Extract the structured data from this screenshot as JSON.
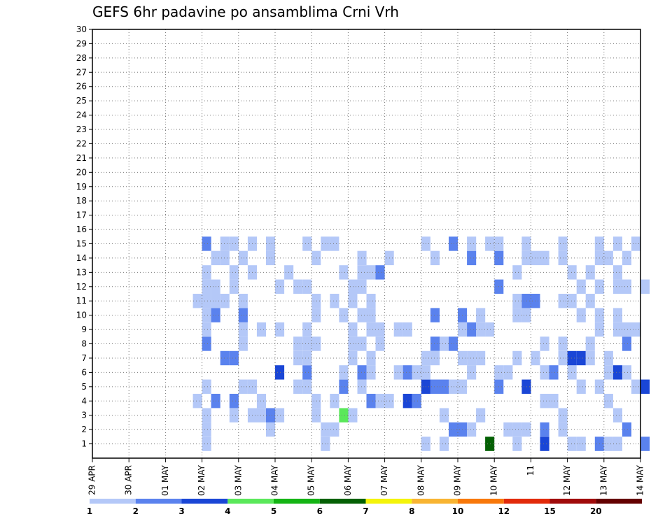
{
  "chart_data": {
    "type": "heatmap",
    "title": "GEFS 6hr padavine po ansamblima Crni Vrh",
    "x_tick_labels": [
      "29 APR",
      "30 APR",
      "01 MAY",
      "02 MAY",
      "03 MAY",
      "04 MAY",
      "05 MAY",
      "06 MAY",
      "07 MAY",
      "08 MAY",
      "09 MAY",
      "10 MAY",
      "11",
      "12 MAY",
      "13 MAY",
      "14 MAY"
    ],
    "y_tick_labels": [
      "1",
      "2",
      "3",
      "4",
      "5",
      "6",
      "7",
      "8",
      "9",
      "10",
      "11",
      "12",
      "13",
      "14",
      "15",
      "16",
      "17",
      "18",
      "19",
      "20",
      "21",
      "22",
      "23",
      "24",
      "25",
      "26",
      "27",
      "28",
      "29",
      "30"
    ],
    "x_range_steps": [
      0,
      60
    ],
    "y_range_members": [
      1,
      30
    ],
    "grid": true,
    "legend": {
      "placement": "bottom",
      "thresholds": [
        "1",
        "2",
        "3",
        "4",
        "5",
        "6",
        "7",
        "8",
        "10",
        "12",
        "15",
        "20"
      ],
      "colors": [
        "#b4c8f8",
        "#5a82ee",
        "#1a46d6",
        "#5ae85a",
        "#14b414",
        "#046004",
        "#f4f40a",
        "#f8b432",
        "#f8780a",
        "#e22a0a",
        "#a00a0a",
        "#640000"
      ]
    },
    "cells": [
      [
        1,
        12,
        1
      ],
      [
        1,
        25,
        1
      ],
      [
        1,
        46,
        1
      ],
      [
        1,
        49,
        3
      ],
      [
        1,
        55,
        2
      ],
      [
        1,
        60,
        2
      ],
      [
        1,
        57,
        1
      ],
      [
        1,
        53,
        1
      ],
      [
        1,
        43,
        6
      ],
      [
        1,
        36,
        1
      ],
      [
        1,
        38,
        1
      ],
      [
        1,
        52,
        1
      ],
      [
        1,
        56,
        1
      ],
      [
        2,
        12,
        1
      ],
      [
        2,
        19,
        1
      ],
      [
        2,
        25,
        1
      ],
      [
        2,
        45,
        1
      ],
      [
        2,
        46,
        1
      ],
      [
        2,
        47,
        1
      ],
      [
        2,
        49,
        2
      ],
      [
        2,
        51,
        1
      ],
      [
        2,
        26,
        1
      ],
      [
        2,
        39,
        2
      ],
      [
        2,
        40,
        2
      ],
      [
        2,
        41,
        1
      ],
      [
        2,
        58,
        2
      ],
      [
        3,
        20,
        1
      ],
      [
        3,
        12,
        1
      ],
      [
        3,
        28,
        1
      ],
      [
        3,
        15,
        1
      ],
      [
        3,
        17,
        1
      ],
      [
        3,
        18,
        1
      ],
      [
        3,
        24,
        1
      ],
      [
        3,
        27,
        4
      ],
      [
        3,
        38,
        1
      ],
      [
        3,
        51,
        1
      ],
      [
        3,
        19,
        2
      ],
      [
        3,
        42,
        1
      ],
      [
        3,
        57,
        1
      ],
      [
        4,
        13,
        2
      ],
      [
        4,
        15,
        2
      ],
      [
        4,
        24,
        1
      ],
      [
        4,
        26,
        1
      ],
      [
        4,
        34,
        3
      ],
      [
        4,
        35,
        2
      ],
      [
        4,
        30,
        2
      ],
      [
        4,
        31,
        1
      ],
      [
        4,
        32,
        1
      ],
      [
        4,
        49,
        1
      ],
      [
        4,
        50,
        1
      ],
      [
        4,
        11,
        1
      ],
      [
        4,
        18,
        1
      ],
      [
        4,
        56,
        1
      ],
      [
        5,
        12,
        1
      ],
      [
        5,
        16,
        1
      ],
      [
        5,
        17,
        1
      ],
      [
        5,
        23,
        1
      ],
      [
        5,
        22,
        1
      ],
      [
        5,
        27,
        2
      ],
      [
        5,
        29,
        1
      ],
      [
        5,
        47,
        3
      ],
      [
        5,
        55,
        1
      ],
      [
        5,
        59,
        1
      ],
      [
        5,
        60,
        3
      ],
      [
        5,
        40,
        1
      ],
      [
        5,
        44,
        2
      ],
      [
        5,
        36,
        3
      ],
      [
        5,
        37,
        2
      ],
      [
        5,
        38,
        2
      ],
      [
        5,
        39,
        1
      ],
      [
        5,
        53,
        1
      ],
      [
        6,
        27,
        1
      ],
      [
        6,
        29,
        2
      ],
      [
        6,
        41,
        1
      ],
      [
        6,
        45,
        1
      ],
      [
        6,
        49,
        1
      ],
      [
        6,
        50,
        2
      ],
      [
        6,
        52,
        1
      ],
      [
        6,
        56,
        1
      ],
      [
        6,
        44,
        1
      ],
      [
        6,
        20,
        3
      ],
      [
        6,
        23,
        2
      ],
      [
        6,
        30,
        1
      ],
      [
        6,
        33,
        1
      ],
      [
        6,
        34,
        2
      ],
      [
        6,
        35,
        1
      ],
      [
        6,
        36,
        1
      ],
      [
        6,
        57,
        3
      ],
      [
        6,
        58,
        1
      ],
      [
        7,
        14,
        2
      ],
      [
        7,
        15,
        2
      ],
      [
        7,
        22,
        1
      ],
      [
        7,
        23,
        1
      ],
      [
        7,
        28,
        1
      ],
      [
        7,
        30,
        1
      ],
      [
        7,
        36,
        1
      ],
      [
        7,
        37,
        1
      ],
      [
        7,
        40,
        1
      ],
      [
        7,
        41,
        1
      ],
      [
        7,
        42,
        1
      ],
      [
        7,
        46,
        1
      ],
      [
        7,
        48,
        1
      ],
      [
        7,
        51,
        1
      ],
      [
        7,
        52,
        3
      ],
      [
        7,
        53,
        3
      ],
      [
        7,
        54,
        1
      ],
      [
        7,
        56,
        1
      ],
      [
        8,
        12,
        2
      ],
      [
        8,
        16,
        1
      ],
      [
        8,
        22,
        1
      ],
      [
        8,
        23,
        1
      ],
      [
        8,
        28,
        1
      ],
      [
        8,
        29,
        1
      ],
      [
        8,
        31,
        1
      ],
      [
        8,
        38,
        1
      ],
      [
        8,
        39,
        2
      ],
      [
        8,
        49,
        1
      ],
      [
        8,
        51,
        1
      ],
      [
        8,
        58,
        2
      ],
      [
        8,
        24,
        1
      ],
      [
        8,
        37,
        2
      ],
      [
        8,
        54,
        1
      ],
      [
        9,
        12,
        1
      ],
      [
        9,
        16,
        1
      ],
      [
        9,
        18,
        1
      ],
      [
        9,
        20,
        1
      ],
      [
        9,
        23,
        1
      ],
      [
        9,
        28,
        1
      ],
      [
        9,
        30,
        1
      ],
      [
        9,
        31,
        1
      ],
      [
        9,
        33,
        1
      ],
      [
        9,
        34,
        1
      ],
      [
        9,
        40,
        1
      ],
      [
        9,
        41,
        2
      ],
      [
        9,
        42,
        1
      ],
      [
        9,
        43,
        1
      ],
      [
        9,
        55,
        1
      ],
      [
        9,
        57,
        1
      ],
      [
        9,
        58,
        1
      ],
      [
        9,
        59,
        1
      ],
      [
        10,
        12,
        1
      ],
      [
        10,
        13,
        2
      ],
      [
        10,
        16,
        2
      ],
      [
        10,
        24,
        1
      ],
      [
        10,
        27,
        1
      ],
      [
        10,
        29,
        1
      ],
      [
        10,
        30,
        1
      ],
      [
        10,
        37,
        2
      ],
      [
        10,
        40,
        2
      ],
      [
        10,
        42,
        1
      ],
      [
        10,
        46,
        1
      ],
      [
        10,
        47,
        1
      ],
      [
        10,
        53,
        1
      ],
      [
        10,
        55,
        1
      ],
      [
        10,
        57,
        1
      ],
      [
        11,
        11,
        1
      ],
      [
        11,
        12,
        1
      ],
      [
        11,
        13,
        1
      ],
      [
        11,
        14,
        1
      ],
      [
        11,
        16,
        1
      ],
      [
        11,
        24,
        1
      ],
      [
        11,
        26,
        1
      ],
      [
        11,
        28,
        1
      ],
      [
        11,
        30,
        1
      ],
      [
        11,
        46,
        1
      ],
      [
        11,
        47,
        2
      ],
      [
        11,
        48,
        2
      ],
      [
        11,
        51,
        1
      ],
      [
        11,
        52,
        1
      ],
      [
        11,
        54,
        1
      ],
      [
        12,
        12,
        1
      ],
      [
        12,
        13,
        1
      ],
      [
        12,
        15,
        1
      ],
      [
        12,
        20,
        1
      ],
      [
        12,
        22,
        1
      ],
      [
        12,
        23,
        1
      ],
      [
        12,
        28,
        1
      ],
      [
        12,
        29,
        1
      ],
      [
        12,
        44,
        2
      ],
      [
        12,
        53,
        1
      ],
      [
        12,
        55,
        1
      ],
      [
        12,
        57,
        1
      ],
      [
        12,
        58,
        1
      ],
      [
        12,
        60,
        1
      ],
      [
        13,
        12,
        1
      ],
      [
        13,
        15,
        1
      ],
      [
        13,
        17,
        1
      ],
      [
        13,
        21,
        1
      ],
      [
        13,
        27,
        1
      ],
      [
        13,
        29,
        1
      ],
      [
        13,
        30,
        1
      ],
      [
        13,
        31,
        2
      ],
      [
        13,
        46,
        1
      ],
      [
        13,
        52,
        1
      ],
      [
        13,
        54,
        1
      ],
      [
        13,
        57,
        1
      ],
      [
        14,
        13,
        1
      ],
      [
        14,
        14,
        1
      ],
      [
        14,
        16,
        1
      ],
      [
        14,
        19,
        1
      ],
      [
        14,
        24,
        1
      ],
      [
        14,
        29,
        1
      ],
      [
        14,
        32,
        1
      ],
      [
        14,
        37,
        1
      ],
      [
        14,
        41,
        2
      ],
      [
        14,
        44,
        2
      ],
      [
        14,
        47,
        1
      ],
      [
        14,
        48,
        1
      ],
      [
        14,
        49,
        1
      ],
      [
        14,
        51,
        1
      ],
      [
        14,
        55,
        1
      ],
      [
        14,
        56,
        1
      ],
      [
        14,
        58,
        1
      ],
      [
        15,
        12,
        2
      ],
      [
        15,
        14,
        1
      ],
      [
        15,
        15,
        1
      ],
      [
        15,
        17,
        1
      ],
      [
        15,
        19,
        1
      ],
      [
        15,
        23,
        1
      ],
      [
        15,
        25,
        1
      ],
      [
        15,
        26,
        1
      ],
      [
        15,
        36,
        1
      ],
      [
        15,
        39,
        2
      ],
      [
        15,
        41,
        1
      ],
      [
        15,
        43,
        1
      ],
      [
        15,
        44,
        1
      ],
      [
        15,
        47,
        1
      ],
      [
        15,
        51,
        1
      ],
      [
        15,
        55,
        1
      ],
      [
        15,
        57,
        1
      ],
      [
        15,
        59,
        1
      ]
    ]
  }
}
